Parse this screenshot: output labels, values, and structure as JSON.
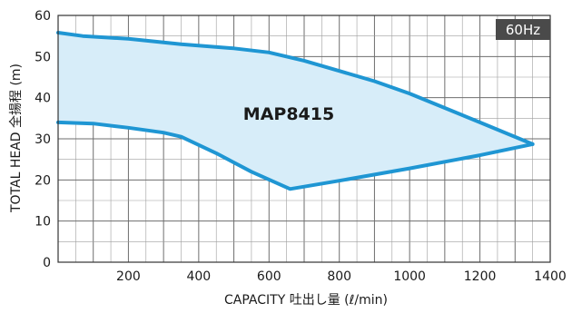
{
  "chart_data": {
    "type": "area",
    "series_label": "MAP8415",
    "frequency_badge": "60Hz",
    "xlabel": "CAPACITY 吐出し量 (ℓ/min)",
    "ylabel": "TOTAL HEAD 全揚程 (m)",
    "xlim": [
      0,
      1400
    ],
    "ylim": [
      0,
      60
    ],
    "x_ticks": [
      200,
      400,
      600,
      800,
      1000,
      1200,
      1400
    ],
    "y_ticks": [
      0,
      10,
      20,
      30,
      40,
      50,
      60
    ],
    "grid": true,
    "upper_curve": [
      {
        "x": 0,
        "y": 55.8
      },
      {
        "x": 70,
        "y": 55
      },
      {
        "x": 200,
        "y": 54.3
      },
      {
        "x": 350,
        "y": 53
      },
      {
        "x": 500,
        "y": 52
      },
      {
        "x": 600,
        "y": 51
      },
      {
        "x": 700,
        "y": 49
      },
      {
        "x": 800,
        "y": 46.5
      },
      {
        "x": 900,
        "y": 44
      },
      {
        "x": 1000,
        "y": 41
      },
      {
        "x": 1100,
        "y": 37.5
      },
      {
        "x": 1200,
        "y": 34
      },
      {
        "x": 1350,
        "y": 28.7
      }
    ],
    "lower_curve": [
      {
        "x": 0,
        "y": 34
      },
      {
        "x": 100,
        "y": 33.7
      },
      {
        "x": 200,
        "y": 32.7
      },
      {
        "x": 300,
        "y": 31.5
      },
      {
        "x": 350,
        "y": 30.5
      },
      {
        "x": 450,
        "y": 26.5
      },
      {
        "x": 550,
        "y": 22
      },
      {
        "x": 660,
        "y": 17.8
      },
      {
        "x": 800,
        "y": 19.8
      },
      {
        "x": 1000,
        "y": 22.8
      },
      {
        "x": 1200,
        "y": 26
      },
      {
        "x": 1350,
        "y": 28.7
      }
    ],
    "colors": {
      "line": "#1f96d3",
      "fill": "#d7edf9",
      "grid_major": "#6e6e6e",
      "grid_minor": "#9e9e9e",
      "badge_bg": "#4a4a4a"
    }
  }
}
